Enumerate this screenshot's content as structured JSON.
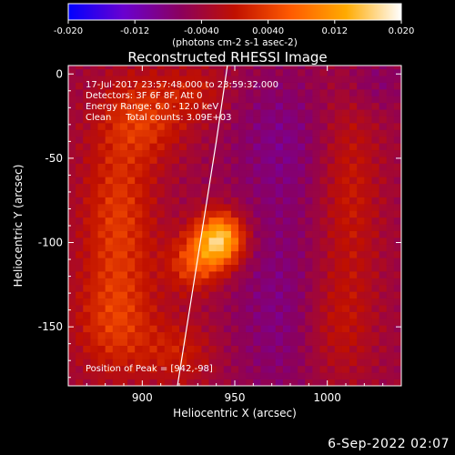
{
  "chart_data": {
    "type": "heatmap",
    "title": "Reconstructed RHESSI Image",
    "xlabel": "Heliocentric X (arcsec)",
    "ylabel": "Heliocentric Y (arcsec)",
    "xlim": [
      860,
      1040
    ],
    "ylim": [
      -185,
      5
    ],
    "x_ticks": [
      900,
      950,
      1000
    ],
    "y_ticks": [
      0,
      -50,
      -100,
      -150
    ],
    "colorbar": {
      "range": [
        -0.02,
        0.02
      ],
      "ticks": [
        "-0.020",
        "-0.012",
        "-0.0040",
        "0.0040",
        "0.012",
        "0.020"
      ],
      "unit_label": "(photons cm-2 s-1 asec-2)",
      "colors": [
        "#0000ff",
        "#6a00d0",
        "#8a0060",
        "#c01000",
        "#ff5a00",
        "#ffaa00",
        "#ffffff"
      ]
    },
    "annotations": [
      "17-Jul-2017 23:57:48.000 to 23:59:32.000",
      "Detectors: 3F 6F 8F, Att 0",
      "Energy Range: 6.0 - 12.0 keV",
      "Clean     Total counts: 3.09E+03"
    ],
    "peak_label": "Position of Peak = [942,-98]",
    "peak": {
      "x": 942,
      "y": -98
    },
    "limb_line": [
      [
        919,
        -185
      ],
      [
        940,
        -40
      ],
      [
        946,
        5
      ]
    ],
    "sources": [
      {
        "x": 942,
        "y": -98,
        "amp": 0.02,
        "sx": 9,
        "sy": 11
      },
      {
        "x": 928,
        "y": -112,
        "amp": 0.009,
        "sx": 10,
        "sy": 12
      },
      {
        "x": 887,
        "y": -88,
        "amp": 0.008,
        "sx": 14,
        "sy": 40
      },
      {
        "x": 902,
        "y": -25,
        "amp": 0.007,
        "sx": 16,
        "sy": 18
      },
      {
        "x": 885,
        "y": -150,
        "amp": 0.006,
        "sx": 16,
        "sy": 22
      },
      {
        "x": 920,
        "y": -165,
        "amp": 0.005,
        "sx": 14,
        "sy": 14
      },
      {
        "x": 1012,
        "y": -70,
        "amp": 0.005,
        "sx": 12,
        "sy": 45
      },
      {
        "x": 1005,
        "y": -150,
        "amp": 0.004,
        "sx": 14,
        "sy": 25
      },
      {
        "x": 930,
        "y": -10,
        "amp": 0.004,
        "sx": 12,
        "sy": 12
      },
      {
        "x": 975,
        "y": -40,
        "amp": -0.004,
        "sx": 18,
        "sy": 30
      },
      {
        "x": 975,
        "y": -140,
        "amp": -0.004,
        "sx": 18,
        "sy": 40
      },
      {
        "x": 1025,
        "y": -5,
        "amp": -0.003,
        "sx": 12,
        "sy": 12
      }
    ]
  },
  "footer": {
    "date_stamp": "6-Sep-2022 02:07"
  }
}
